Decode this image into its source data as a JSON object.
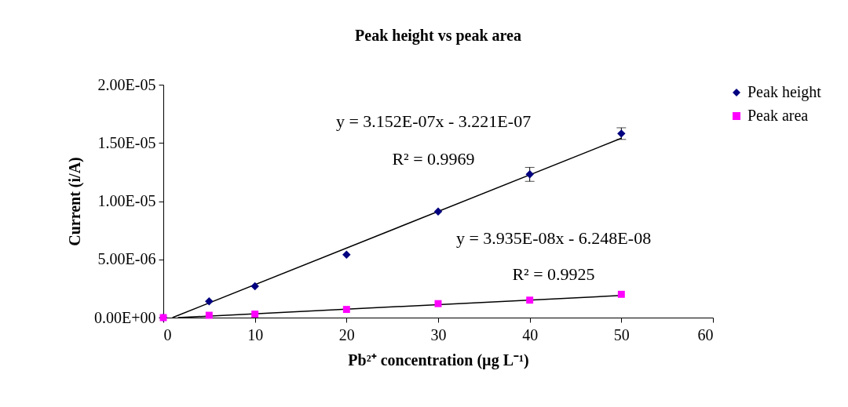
{
  "chart_data": {
    "type": "scatter",
    "title": "Peak height vs peak area",
    "xlabel": "Pb²⁺ concentration (µg L⁻¹)",
    "ylabel": "Current (i/A)",
    "xlim": [
      0,
      60
    ],
    "xticks": [
      0,
      10,
      20,
      30,
      40,
      50,
      60
    ],
    "ylim": [
      0,
      2e-05
    ],
    "yticks": [
      {
        "value": 0,
        "label": "0.00E+00"
      },
      {
        "value": 5e-06,
        "label": "5.00E-06"
      },
      {
        "value": 1e-05,
        "label": "1.00E-05"
      },
      {
        "value": 1.5e-05,
        "label": "1.50E-05"
      },
      {
        "value": 2e-05,
        "label": "2.00E-05"
      }
    ],
    "legend": "right",
    "grid": false,
    "annotations": [
      "y = 3.152E-07x - 3.221E-07",
      "R² = 0.9969",
      "y = 3.935E-08x - 6.248E-08",
      "R² = 0.9925"
    ],
    "series": [
      {
        "name": "Peak height",
        "marker": "diamond",
        "color": "#000080",
        "x": [
          0,
          5,
          10,
          20,
          30,
          40,
          50
        ],
        "values": [
          0,
          1.4e-06,
          2.7e-06,
          5.4e-06,
          9.1e-06,
          1.23e-05,
          1.58e-05
        ],
        "errors": [
          null,
          null,
          null,
          null,
          null,
          6e-07,
          5e-07
        ]
      },
      {
        "name": "Peak area",
        "marker": "square",
        "color": "#ff00ff",
        "x": [
          0,
          5,
          10,
          20,
          30,
          40,
          50
        ],
        "values": [
          0,
          2e-07,
          3e-07,
          7e-07,
          1.2e-06,
          1.5e-06,
          2e-06
        ]
      },
      {
        "type": "line",
        "color": "#000000",
        "x": [
          1,
          50
        ],
        "values": [
          0,
          1.54e-05
        ]
      },
      {
        "type": "line",
        "color": "#000000",
        "x": [
          1.6,
          50
        ],
        "values": [
          0,
          1.9e-06
        ]
      }
    ]
  }
}
